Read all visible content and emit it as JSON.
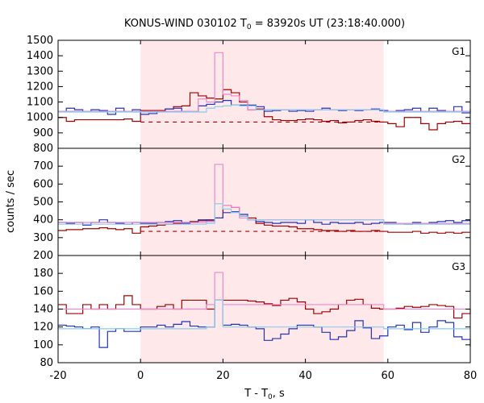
{
  "chart_data": {
    "type": "line",
    "title_main": "KONUS-WIND 030102 T",
    "title_sub": "0",
    "title_rest": " = 83920s UT (23:18:40.000)",
    "xlabel_main": "T - T",
    "xlabel_sub": "0",
    "xlabel_rest": ", s",
    "ylabel": "counts / sec",
    "xlim": [
      -20,
      80
    ],
    "xticks": [
      -20,
      0,
      20,
      40,
      60,
      80
    ],
    "shaded_interval": [
      0,
      59
    ],
    "colors": {
      "shade": "#ffe8ea",
      "dark_red": "#a00000",
      "blue": "#2233bb",
      "pink": "#ee88cc",
      "light_blue": "#88ccee"
    },
    "panels": [
      {
        "label": "G1",
        "ylim": [
          800,
          1500
        ],
        "yticks": [
          800,
          900,
          1000,
          1100,
          1200,
          1300,
          1400,
          1500
        ],
        "background_level": 970,
        "series": [
          {
            "color": "#a00000",
            "x": [
              -20,
              -18,
              -16,
              -14,
              -12,
              -10,
              -8,
              -6,
              -4,
              -2,
              0,
              2,
              4,
              6,
              8,
              10,
              12,
              14,
              16,
              18,
              20,
              22,
              24,
              26,
              28,
              30,
              32,
              34,
              36,
              38,
              40,
              42,
              44,
              46,
              48,
              50,
              52,
              54,
              56,
              58,
              60,
              62,
              64,
              66,
              68,
              70,
              72,
              74,
              76,
              78,
              80
            ],
            "y": [
              1000,
              975,
              985,
              985,
              985,
              985,
              985,
              985,
              990,
              975,
              1045,
              1045,
              1045,
              1055,
              1070,
              1075,
              1160,
              1140,
              1125,
              1120,
              1180,
              1160,
              1100,
              1050,
              1055,
              1005,
              985,
              980,
              980,
              985,
              990,
              985,
              975,
              980,
              965,
              970,
              980,
              985,
              975,
              970,
              960,
              940,
              1000,
              1000,
              960,
              920,
              960,
              970,
              975,
              960,
              960
            ]
          },
          {
            "color": "#2233bb",
            "x": [
              -20,
              -18,
              -16,
              -14,
              -12,
              -10,
              -8,
              -6,
              -4,
              -2,
              0,
              2,
              4,
              6,
              8,
              10,
              12,
              14,
              16,
              18,
              20,
              22,
              24,
              26,
              28,
              30,
              32,
              34,
              36,
              38,
              40,
              42,
              44,
              46,
              48,
              50,
              52,
              54,
              56,
              58,
              60,
              62,
              64,
              66,
              68,
              70,
              72,
              74,
              76,
              78,
              80
            ],
            "y": [
              1040,
              1060,
              1050,
              1040,
              1050,
              1045,
              1020,
              1060,
              1040,
              1050,
              1020,
              1025,
              1040,
              1055,
              1060,
              1040,
              1040,
              1075,
              1085,
              1100,
              1110,
              1080,
              1080,
              1080,
              1070,
              1040,
              1045,
              1050,
              1040,
              1045,
              1040,
              1050,
              1060,
              1050,
              1045,
              1050,
              1045,
              1050,
              1055,
              1045,
              1040,
              1045,
              1050,
              1060,
              1040,
              1060,
              1045,
              1040,
              1070,
              1030,
              1055
            ]
          },
          {
            "color": "#ee88cc",
            "x": [
              -20,
              0,
              14,
              16,
              18,
              20,
              22,
              24,
              26,
              59,
              80
            ],
            "y": [
              1040,
              1040,
              1120,
              1100,
              1420,
              1150,
              1140,
              1110,
              1050,
              1040,
              1040
            ]
          },
          {
            "color": "#88ccee",
            "x": [
              -20,
              0,
              16,
              18,
              20,
              22,
              24,
              28,
              59,
              80
            ],
            "y": [
              1035,
              1035,
              1060,
              1070,
              1075,
              1080,
              1075,
              1050,
              1035,
              1035
            ]
          }
        ]
      },
      {
        "label": "G2",
        "ylim": [
          200,
          800
        ],
        "yticks": [
          200,
          300,
          400,
          500,
          600,
          700
        ],
        "background_level": 335,
        "series": [
          {
            "color": "#a00000",
            "x": [
              -20,
              -18,
              -16,
              -14,
              -12,
              -10,
              -8,
              -6,
              -4,
              -2,
              0,
              2,
              4,
              6,
              8,
              10,
              12,
              14,
              16,
              18,
              20,
              22,
              24,
              26,
              28,
              30,
              32,
              34,
              36,
              38,
              40,
              42,
              44,
              46,
              48,
              50,
              52,
              54,
              56,
              58,
              60,
              62,
              64,
              66,
              68,
              70,
              72,
              74,
              76,
              78,
              80
            ],
            "y": [
              340,
              345,
              345,
              350,
              350,
              355,
              350,
              345,
              350,
              325,
              360,
              365,
              370,
              375,
              380,
              385,
              390,
              395,
              400,
              410,
              480,
              470,
              420,
              410,
              380,
              370,
              365,
              365,
              360,
              350,
              350,
              345,
              340,
              340,
              335,
              340,
              335,
              335,
              340,
              335,
              330,
              330,
              330,
              335,
              325,
              330,
              325,
              330,
              325,
              330,
              330
            ]
          },
          {
            "color": "#2233bb",
            "x": [
              -20,
              -18,
              -16,
              -14,
              -12,
              -10,
              -8,
              -6,
              -4,
              -2,
              0,
              2,
              4,
              6,
              8,
              10,
              12,
              14,
              16,
              18,
              20,
              22,
              24,
              26,
              28,
              30,
              32,
              34,
              36,
              38,
              40,
              42,
              44,
              46,
              48,
              50,
              52,
              54,
              56,
              58,
              60,
              62,
              64,
              66,
              68,
              70,
              72,
              74,
              76,
              78,
              80
            ],
            "y": [
              385,
              380,
              385,
              370,
              385,
              400,
              385,
              380,
              375,
              385,
              380,
              380,
              385,
              390,
              395,
              380,
              385,
              400,
              395,
              410,
              440,
              445,
              430,
              400,
              390,
              385,
              380,
              385,
              385,
              380,
              400,
              385,
              375,
              385,
              380,
              380,
              385,
              375,
              380,
              385,
              385,
              380,
              375,
              385,
              380,
              385,
              390,
              395,
              385,
              395,
              395
            ]
          },
          {
            "color": "#ee88cc",
            "x": [
              -20,
              0,
              16,
              18,
              20,
              22,
              24,
              26,
              59,
              80
            ],
            "y": [
              385,
              385,
              390,
              710,
              480,
              470,
              410,
              400,
              380,
              380
            ]
          },
          {
            "color": "#88ccee",
            "x": [
              -20,
              0,
              16,
              18,
              20,
              22,
              24,
              26,
              59,
              80
            ],
            "y": [
              375,
              375,
              380,
              490,
              460,
              440,
              420,
              400,
              375,
              375
            ]
          }
        ]
      },
      {
        "label": "G3",
        "ylim": [
          80,
          200
        ],
        "yticks": [
          80,
          100,
          120,
          140,
          160,
          180
        ],
        "background_level": null,
        "series": [
          {
            "color": "#a00000",
            "x": [
              -20,
              -18,
              -16,
              -14,
              -12,
              -10,
              -8,
              -6,
              -4,
              -2,
              0,
              2,
              4,
              6,
              8,
              10,
              12,
              14,
              16,
              18,
              20,
              22,
              24,
              26,
              28,
              30,
              32,
              34,
              36,
              38,
              40,
              42,
              44,
              46,
              48,
              50,
              52,
              54,
              56,
              58,
              60,
              62,
              64,
              66,
              68,
              70,
              72,
              74,
              76,
              78,
              80
            ],
            "y": [
              145,
              135,
              135,
              145,
              140,
              145,
              140,
              145,
              155,
              145,
              140,
              140,
              143,
              145,
              140,
              150,
              150,
              150,
              140,
              150,
              150,
              150,
              150,
              149,
              148,
              146,
              144,
              150,
              152,
              148,
              140,
              135,
              137,
              140,
              145,
              150,
              151,
              145,
              141,
              140,
              140,
              141,
              143,
              142,
              143,
              145,
              144,
              143,
              130,
              135,
              140
            ]
          },
          {
            "color": "#2233bb",
            "x": [
              -20,
              -18,
              -16,
              -14,
              -12,
              -10,
              -8,
              -6,
              -4,
              -2,
              0,
              2,
              4,
              6,
              8,
              10,
              12,
              14,
              16,
              18,
              20,
              22,
              24,
              26,
              28,
              30,
              32,
              34,
              36,
              38,
              40,
              42,
              44,
              46,
              48,
              50,
              52,
              54,
              56,
              58,
              60,
              62,
              64,
              66,
              68,
              70,
              72,
              74,
              76,
              78,
              80
            ],
            "y": [
              122,
              121,
              120,
              118,
              120,
              97,
              115,
              118,
              115,
              115,
              120,
              120,
              122,
              120,
              123,
              126,
              121,
              120,
              120,
              150,
              122,
              123,
              122,
              120,
              118,
              105,
              107,
              112,
              118,
              122,
              122,
              120,
              114,
              106,
              109,
              116,
              127,
              119,
              107,
              110,
              120,
              122,
              117,
              125,
              114,
              120,
              127,
              125,
              109,
              106,
              98
            ]
          },
          {
            "color": "#ee88cc",
            "x": [
              -20,
              0,
              16,
              18,
              20,
              59,
              80
            ],
            "y": [
              140,
              140,
              145,
              181,
              145,
              140,
              140
            ]
          },
          {
            "color": "#88ccee",
            "x": [
              -20,
              0,
              16,
              18,
              20,
              59,
              80
            ],
            "y": [
              118,
              118,
              120,
              150,
              120,
              118,
              118
            ]
          }
        ]
      }
    ]
  }
}
